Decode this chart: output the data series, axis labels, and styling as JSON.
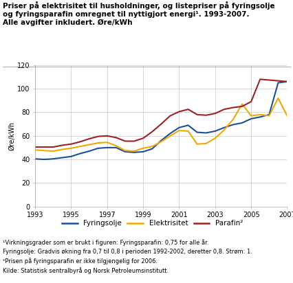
{
  "title_lines": [
    "Priser på elektrisitet til husholdninger, og listepriser på fyringsolje",
    "og fyringsparafin omregnet til nyttigjort energi¹. 1993-2007.",
    "Alle avgifter inkludert. Øre/kWh"
  ],
  "ylabel": "Øre/kWh",
  "ylim": [
    0,
    120
  ],
  "yticks": [
    0,
    20,
    40,
    60,
    80,
    100,
    120
  ],
  "xticks": [
    1993,
    1995,
    1997,
    1999,
    2001,
    2003,
    2005,
    2007
  ],
  "fyringsolje": {
    "color": "#1a4f9c",
    "label": "Fyringsolje",
    "x": [
      1993,
      1993.5,
      1994,
      1994.5,
      1995,
      1995.5,
      1996,
      1996.5,
      1997,
      1997.5,
      1998,
      1998.5,
      1999,
      1999.5,
      2000,
      2000.5,
      2001,
      2001.5,
      2002,
      2002.5,
      2003,
      2003.5,
      2004,
      2004.5,
      2005,
      2005.5,
      2006,
      2006.5,
      2007
    ],
    "y": [
      40.5,
      40.0,
      40.5,
      41.5,
      42.5,
      45.0,
      47.0,
      49.5,
      50.0,
      50.0,
      46.5,
      46.0,
      46.5,
      49.0,
      56.0,
      62.0,
      67.0,
      69.0,
      63.0,
      62.5,
      64.0,
      67.0,
      69.5,
      71.0,
      74.5,
      76.0,
      78.0,
      105.0,
      106.0
    ]
  },
  "elektrisitet": {
    "color": "#f0a800",
    "label": "Elektrisitet",
    "x": [
      1993,
      1993.5,
      1994,
      1994.5,
      1995,
      1995.5,
      1996,
      1996.5,
      1997,
      1997.5,
      1998,
      1998.5,
      1999,
      1999.5,
      2000,
      2000.5,
      2001,
      2001.5,
      2002,
      2002.5,
      2003,
      2003.5,
      2004,
      2004.5,
      2005,
      2005.5,
      2006,
      2006.5,
      2007
    ],
    "y": [
      48.0,
      47.5,
      47.0,
      48.5,
      49.5,
      51.0,
      52.5,
      54.0,
      54.5,
      51.5,
      47.5,
      47.0,
      49.5,
      51.0,
      55.0,
      60.0,
      64.5,
      64.0,
      53.0,
      53.5,
      58.0,
      65.0,
      74.0,
      87.0,
      77.0,
      78.0,
      77.0,
      92.0,
      77.0
    ]
  },
  "parafin": {
    "color": "#9e2020",
    "label": "Parafin²",
    "x": [
      1993,
      1993.5,
      1994,
      1994.5,
      1995,
      1995.5,
      1996,
      1996.5,
      1997,
      1997.5,
      1998,
      1998.5,
      1999,
      1999.5,
      2000,
      2000.5,
      2001,
      2001.5,
      2002,
      2002.5,
      2003,
      2003.5,
      2004,
      2004.5,
      2005,
      2005.5,
      2007
    ],
    "y": [
      50.5,
      50.5,
      50.5,
      52.0,
      53.0,
      55.0,
      57.5,
      59.5,
      60.0,
      58.5,
      55.5,
      55.5,
      58.0,
      63.5,
      70.0,
      77.0,
      80.5,
      82.5,
      78.0,
      77.5,
      79.0,
      82.5,
      84.0,
      85.0,
      89.0,
      108.0,
      106.0
    ]
  },
  "footnote1": "¹Virkningsgrader som er brukt i figuren: Fyringsparafin: 0,75 for alle år.",
  "footnote2": "Fyringsolje: Gradvis økning fra 0,7 til 0,8 i perioden 1992-2002, deretter 0,8. Strøm: 1.",
  "footnote3": "²Prisen på fyringsparafin er ikke tilgjengelig for 2006.",
  "footnote4": "Kilde: Statistisk sentralbyrå og Norsk Petroleumsinstitutt.",
  "background_color": "#ffffff",
  "grid_color": "#c8c8c8",
  "title_fontsize": 7.5,
  "tick_fontsize": 7,
  "footnote_fontsize": 6.0,
  "legend_fontsize": 7.5
}
